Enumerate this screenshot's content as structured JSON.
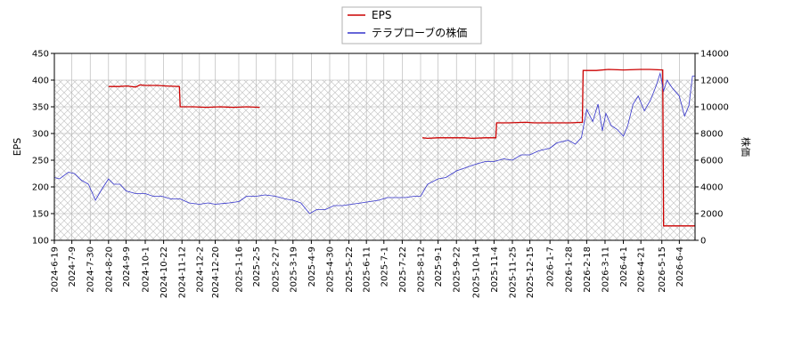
{
  "chart_data": {
    "type": "line",
    "legend": {
      "placement": "top-center",
      "entries": [
        {
          "key": "eps",
          "label": "EPS"
        },
        {
          "key": "price",
          "label": "テラプローブの株価"
        }
      ]
    },
    "y_left": {
      "label": "EPS",
      "ylim": [
        100,
        450
      ],
      "ticks": [
        100,
        150,
        200,
        250,
        300,
        350,
        400,
        450
      ]
    },
    "y_right": {
      "label": "株価",
      "ylim": [
        0,
        14000
      ],
      "ticks": [
        0,
        2000,
        4000,
        6000,
        8000,
        10000,
        12000,
        14000
      ]
    },
    "x": {
      "xlim": [
        "2024-06-19",
        "2026-06-22"
      ],
      "ticks": [
        "2024-6-19",
        "2024-7-9",
        "2024-7-30",
        "2024-8-20",
        "2024-9-9",
        "2024-10-1",
        "2024-10-22",
        "2024-11-12",
        "2024-12-2",
        "2024-12-20",
        "2025-1-16",
        "2025-2-5",
        "2025-2-27",
        "2025-3-19",
        "2025-4-9",
        "2025-4-30",
        "2025-5-22",
        "2025-6-11",
        "2025-7-1",
        "2025-7-22",
        "2025-8-12",
        "2025-9-1",
        "2025-9-22",
        "2025-10-14",
        "2025-11-4",
        "2025-11-25",
        "2025-12-15",
        "2026-1-7",
        "2026-1-28",
        "2026-2-18",
        "2026-3-11",
        "2026-4-1",
        "2026-4-21",
        "2026-5-15",
        "2026-6-4"
      ]
    },
    "grid": true,
    "shaded_region": {
      "y_left": [
        100,
        400
      ],
      "pattern": "crosshatch"
    },
    "colors": {
      "eps": "#cc0000",
      "price": "#3333cc",
      "grid": "#b0b0b0",
      "hatch": "#c8c8c8"
    },
    "series": [
      {
        "name": "EPS",
        "key": "eps",
        "axis": "left",
        "segments": [
          [
            [
              "2024-08-20",
              388
            ],
            [
              "2024-09-01",
              388
            ],
            [
              "2024-09-10",
              389
            ],
            [
              "2024-09-20",
              387
            ],
            [
              "2024-09-25",
              391
            ],
            [
              "2024-10-01",
              390
            ],
            [
              "2024-10-15",
              390
            ],
            [
              "2024-10-25",
              389
            ],
            [
              "2024-11-09",
              388
            ],
            [
              "2024-11-10",
              350
            ],
            [
              "2024-11-25",
              350
            ],
            [
              "2024-12-10",
              349
            ],
            [
              "2024-12-25",
              350
            ],
            [
              "2025-01-10",
              349
            ],
            [
              "2025-01-25",
              350
            ],
            [
              "2025-02-09",
              349
            ]
          ],
          [
            [
              "2025-08-14",
              292
            ],
            [
              "2025-08-20",
              291
            ],
            [
              "2025-09-01",
              292
            ],
            [
              "2025-09-15",
              292
            ],
            [
              "2025-10-01",
              292
            ],
            [
              "2025-10-10",
              291
            ],
            [
              "2025-10-25",
              292
            ],
            [
              "2025-11-06",
              292
            ],
            [
              "2025-11-07",
              320
            ],
            [
              "2025-11-20",
              320
            ],
            [
              "2025-12-10",
              321
            ],
            [
              "2025-12-20",
              320
            ],
            [
              "2026-01-10",
              320
            ],
            [
              "2026-01-30",
              320
            ],
            [
              "2026-02-13",
              321
            ],
            [
              "2026-02-14",
              418
            ],
            [
              "2026-03-01",
              418
            ],
            [
              "2026-03-15",
              420
            ],
            [
              "2026-04-01",
              419
            ],
            [
              "2026-04-20",
              420
            ],
            [
              "2026-05-01",
              420
            ],
            [
              "2026-05-16",
              419
            ],
            [
              "2026-05-17",
              127
            ],
            [
              "2026-06-22",
              127
            ]
          ]
        ]
      },
      {
        "name": "テラプローブの株価",
        "key": "price",
        "axis": "right",
        "points": [
          [
            "2024-06-19",
            4700
          ],
          [
            "2024-06-25",
            4600
          ],
          [
            "2024-07-05",
            5100
          ],
          [
            "2024-07-12",
            5000
          ],
          [
            "2024-07-20",
            4500
          ],
          [
            "2024-07-28",
            4200
          ],
          [
            "2024-08-05",
            3000
          ],
          [
            "2024-08-12",
            3800
          ],
          [
            "2024-08-20",
            4600
          ],
          [
            "2024-08-26",
            4200
          ],
          [
            "2024-09-02",
            4200
          ],
          [
            "2024-09-09",
            3700
          ],
          [
            "2024-09-20",
            3500
          ],
          [
            "2024-10-01",
            3500
          ],
          [
            "2024-10-10",
            3300
          ],
          [
            "2024-10-20",
            3300
          ],
          [
            "2024-10-30",
            3100
          ],
          [
            "2024-11-10",
            3100
          ],
          [
            "2024-11-20",
            2800
          ],
          [
            "2024-12-02",
            2700
          ],
          [
            "2024-12-12",
            2800
          ],
          [
            "2024-12-20",
            2700
          ],
          [
            "2025-01-05",
            2800
          ],
          [
            "2025-01-16",
            2900
          ],
          [
            "2025-01-25",
            3300
          ],
          [
            "2025-02-05",
            3300
          ],
          [
            "2025-02-15",
            3400
          ],
          [
            "2025-02-27",
            3300
          ],
          [
            "2025-03-10",
            3100
          ],
          [
            "2025-03-19",
            3000
          ],
          [
            "2025-03-28",
            2800
          ],
          [
            "2025-04-07",
            2000
          ],
          [
            "2025-04-15",
            2300
          ],
          [
            "2025-04-25",
            2300
          ],
          [
            "2025-05-05",
            2600
          ],
          [
            "2025-05-15",
            2600
          ],
          [
            "2025-05-25",
            2700
          ],
          [
            "2025-06-05",
            2800
          ],
          [
            "2025-06-15",
            2900
          ],
          [
            "2025-06-25",
            3000
          ],
          [
            "2025-07-05",
            3200
          ],
          [
            "2025-07-15",
            3200
          ],
          [
            "2025-07-25",
            3200
          ],
          [
            "2025-08-05",
            3300
          ],
          [
            "2025-08-12",
            3300
          ],
          [
            "2025-08-20",
            4200
          ],
          [
            "2025-09-01",
            4600
          ],
          [
            "2025-09-10",
            4700
          ],
          [
            "2025-09-22",
            5200
          ],
          [
            "2025-10-01",
            5400
          ],
          [
            "2025-10-14",
            5700
          ],
          [
            "2025-10-25",
            5900
          ],
          [
            "2025-11-04",
            5900
          ],
          [
            "2025-11-15",
            6100
          ],
          [
            "2025-11-25",
            6000
          ],
          [
            "2025-12-05",
            6400
          ],
          [
            "2025-12-15",
            6400
          ],
          [
            "2025-12-25",
            6700
          ],
          [
            "2026-01-07",
            6900
          ],
          [
            "2026-01-15",
            7300
          ],
          [
            "2026-01-28",
            7500
          ],
          [
            "2026-02-05",
            7200
          ],
          [
            "2026-02-12",
            7700
          ],
          [
            "2026-02-18",
            9800
          ],
          [
            "2026-02-25",
            8900
          ],
          [
            "2026-03-03",
            10200
          ],
          [
            "2026-03-08",
            8200
          ],
          [
            "2026-03-12",
            9500
          ],
          [
            "2026-03-18",
            8600
          ],
          [
            "2026-03-25",
            8300
          ],
          [
            "2026-04-01",
            7800
          ],
          [
            "2026-04-06",
            8600
          ],
          [
            "2026-04-12",
            10200
          ],
          [
            "2026-04-18",
            10800
          ],
          [
            "2026-04-25",
            9700
          ],
          [
            "2026-05-02",
            10500
          ],
          [
            "2026-05-08",
            11500
          ],
          [
            "2026-05-13",
            12500
          ],
          [
            "2026-05-17",
            11200
          ],
          [
            "2026-05-21",
            12000
          ],
          [
            "2026-05-27",
            11400
          ],
          [
            "2026-06-04",
            10800
          ],
          [
            "2026-06-10",
            9300
          ],
          [
            "2026-06-15",
            10100
          ],
          [
            "2026-06-19",
            12300
          ],
          [
            "2026-06-22",
            12300
          ]
        ]
      }
    ]
  }
}
